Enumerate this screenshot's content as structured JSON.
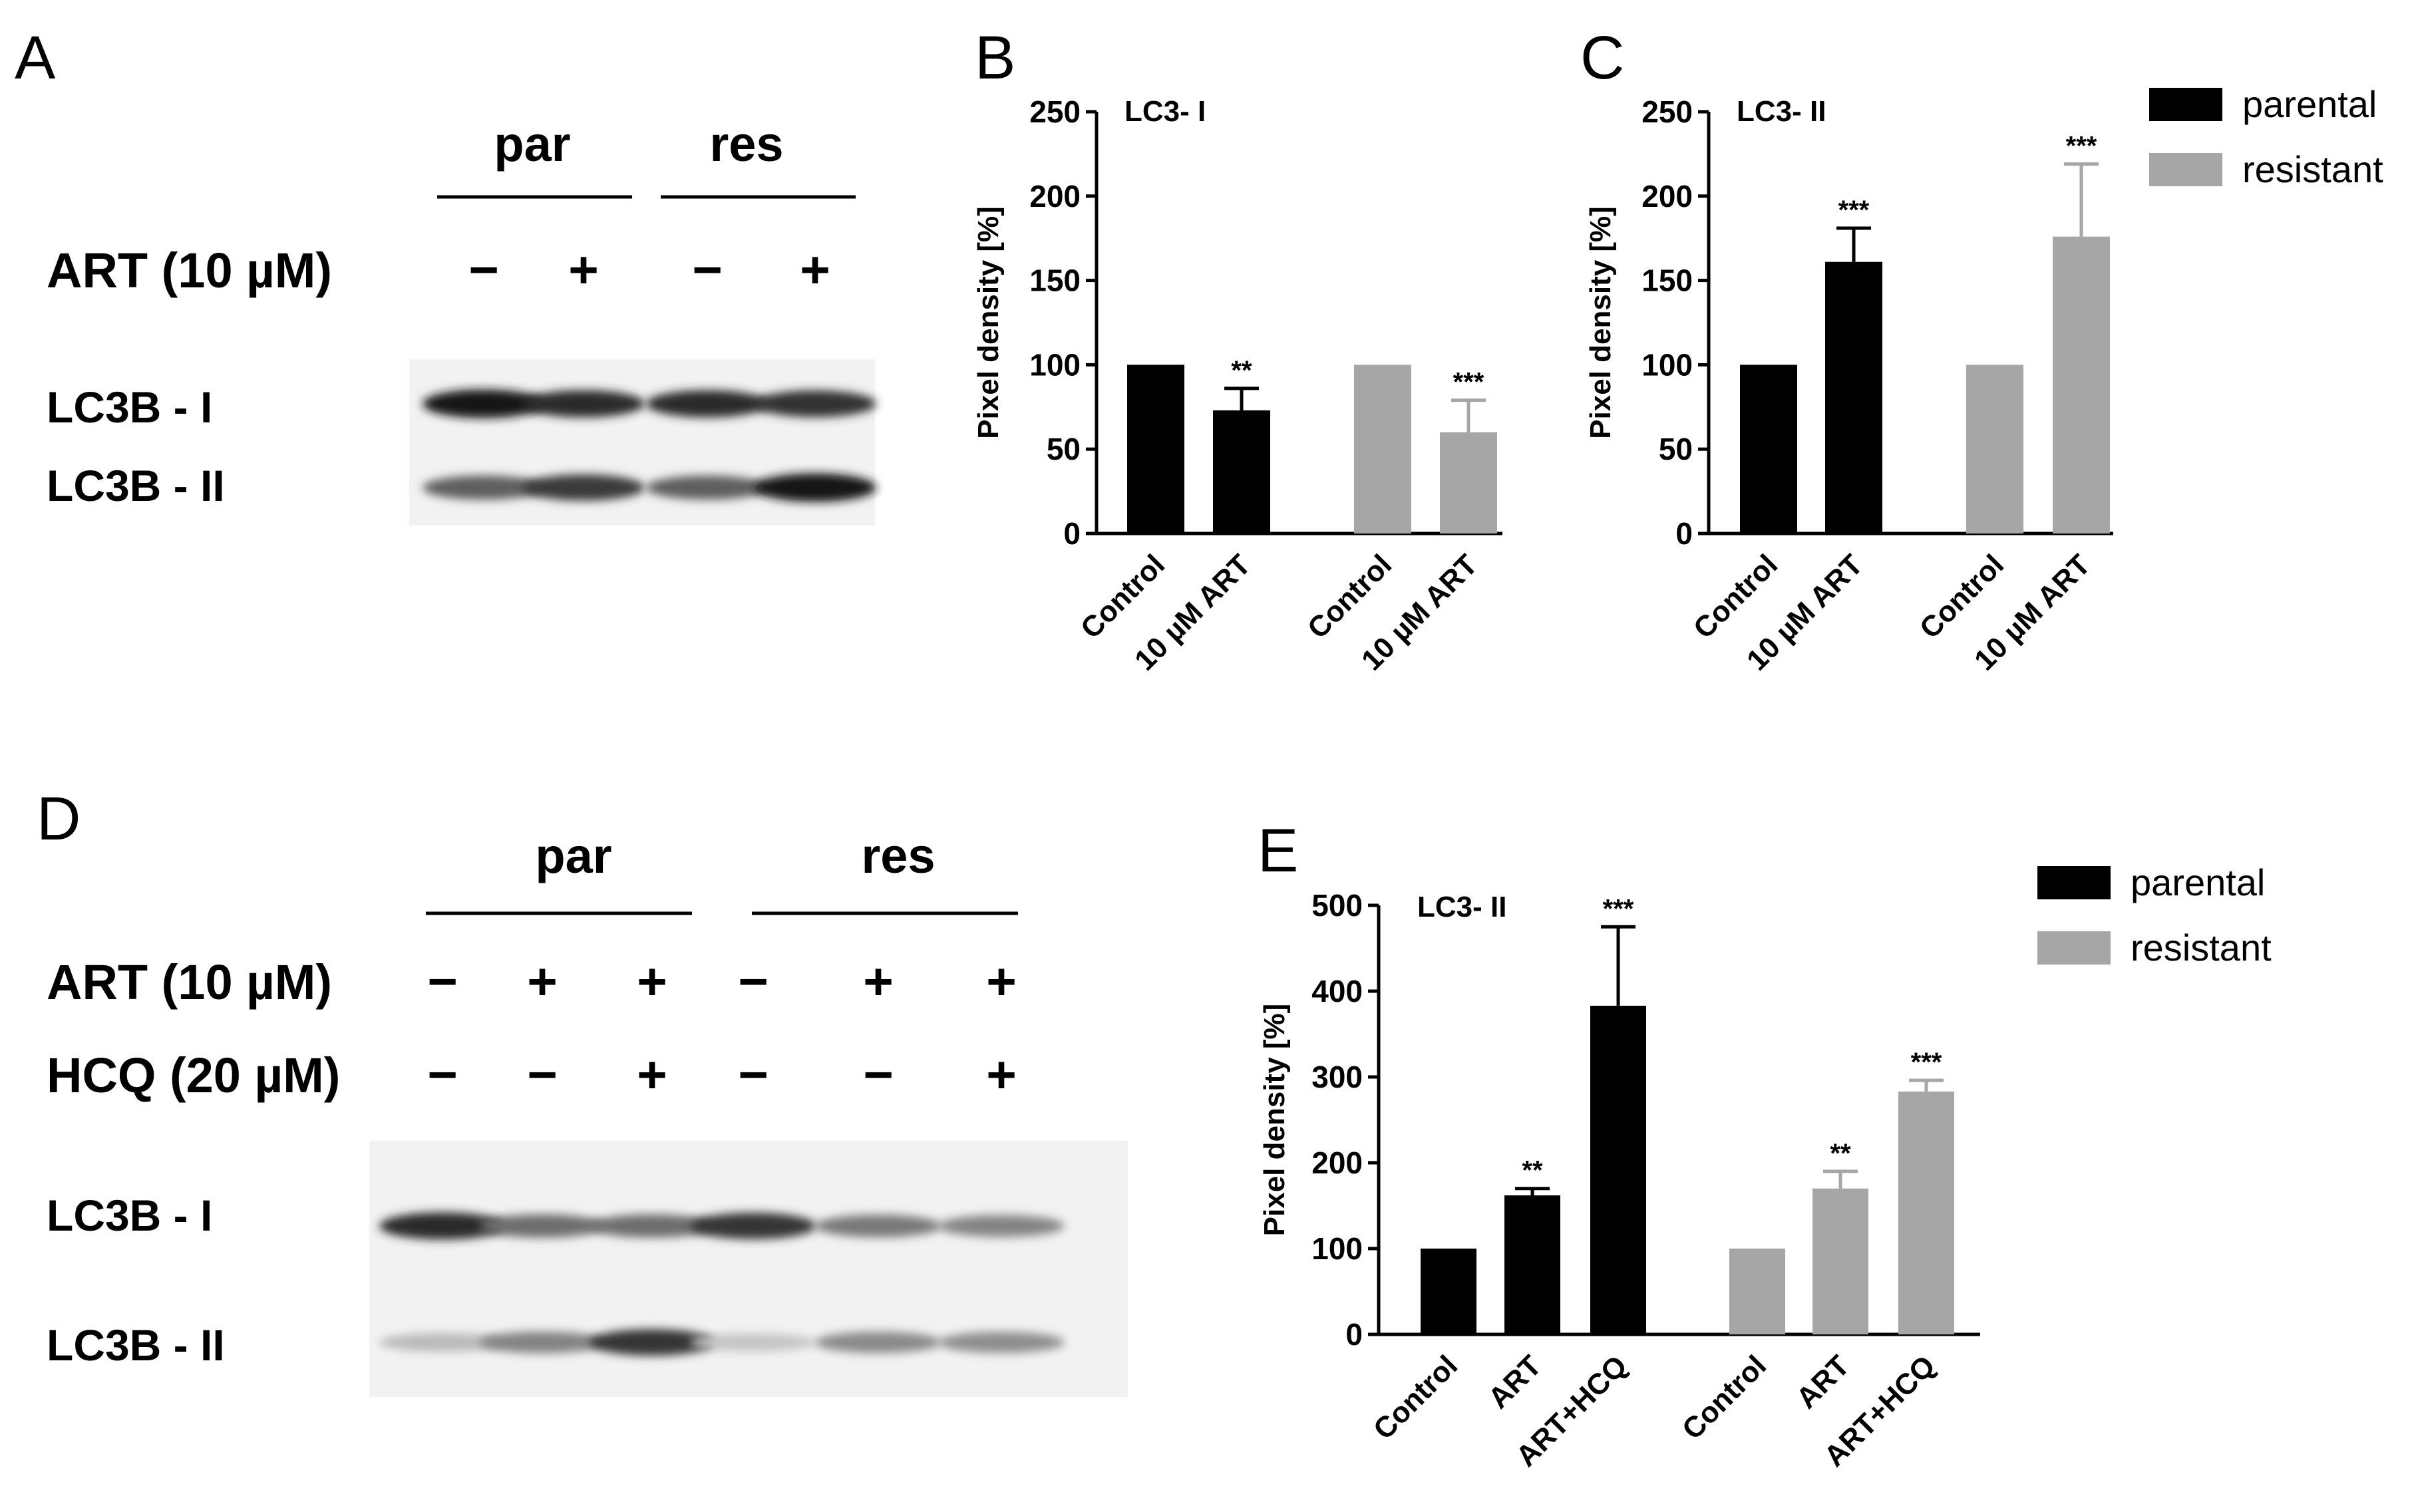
{
  "panels": {
    "A": "A",
    "B": "B",
    "C": "C",
    "D": "D",
    "E": "E"
  },
  "blot_a": {
    "groups": [
      "par",
      "res"
    ],
    "rows": [
      {
        "label": "ART (10 µM)",
        "signs": [
          "−",
          "+",
          "−",
          "+"
        ]
      }
    ],
    "bands": [
      "LC3B - I",
      "LC3B - II"
    ],
    "band_intensity": {
      "LC3B - I": [
        0.95,
        0.85,
        0.85,
        0.82
      ],
      "LC3B - II": [
        0.62,
        0.78,
        0.62,
        0.95
      ]
    }
  },
  "blot_d": {
    "groups": [
      "par",
      "res"
    ],
    "rows": [
      {
        "label": "ART (10 µM)",
        "signs": [
          "−",
          "+",
          "+",
          "−",
          "+",
          "+"
        ]
      },
      {
        "label": "HCQ (20 µM)",
        "signs": [
          "−",
          "−",
          "+",
          "−",
          "−",
          "+"
        ]
      }
    ],
    "bands": [
      "LC3B - I",
      "LC3B - II"
    ],
    "band_intensity": {
      "LC3B - I": [
        0.85,
        0.55,
        0.55,
        0.8,
        0.5,
        0.45
      ],
      "LC3B - II": [
        0.2,
        0.45,
        0.8,
        0.15,
        0.42,
        0.4
      ]
    }
  },
  "legend_top": {
    "items": [
      {
        "name": "parental",
        "color": "#000000"
      },
      {
        "name": "resistant",
        "color": "#a6a6a6"
      }
    ]
  },
  "legend_bottom": {
    "items": [
      {
        "name": "parental",
        "color": "#000000"
      },
      {
        "name": "resistant",
        "color": "#a6a6a6"
      }
    ]
  },
  "chart_data": [
    {
      "panel": "B",
      "type": "bar",
      "title": "LC3- I",
      "ylabel": "Pixel density [%]",
      "ylim": [
        0,
        250
      ],
      "yticks": [
        0,
        50,
        100,
        150,
        200,
        250
      ],
      "categories": [
        "Control",
        "10 µM ART",
        "Control",
        "10 µM ART"
      ],
      "values": [
        100,
        73,
        100,
        60
      ],
      "errors": [
        0,
        13,
        0,
        19
      ],
      "colors": [
        "#000000",
        "#000000",
        "#a6a6a6",
        "#a6a6a6"
      ],
      "significance": [
        "",
        "**",
        "",
        "***"
      ],
      "grid": false
    },
    {
      "panel": "C",
      "type": "bar",
      "title": "LC3- II",
      "ylabel": "Pixel density [%]",
      "ylim": [
        0,
        250
      ],
      "yticks": [
        0,
        50,
        100,
        150,
        200,
        250
      ],
      "categories": [
        "Control",
        "10 µM ART",
        "Control",
        "10 µM ART"
      ],
      "values": [
        100,
        161,
        100,
        176
      ],
      "errors": [
        0,
        20,
        0,
        43
      ],
      "colors": [
        "#000000",
        "#000000",
        "#a6a6a6",
        "#a6a6a6"
      ],
      "significance": [
        "",
        "***",
        "",
        "***"
      ],
      "grid": false
    },
    {
      "panel": "E",
      "type": "bar",
      "title": "LC3- II",
      "ylabel": "Pixel density [%]",
      "ylim": [
        0,
        500
      ],
      "yticks": [
        0,
        100,
        200,
        300,
        400,
        500
      ],
      "categories": [
        "Control",
        "ART",
        "ART+HCQ",
        "Control",
        "ART",
        "ART+HCQ"
      ],
      "values": [
        100,
        162,
        383,
        100,
        170,
        283
      ],
      "errors": [
        0,
        8,
        92,
        0,
        20,
        13
      ],
      "colors": [
        "#000000",
        "#000000",
        "#000000",
        "#a6a6a6",
        "#a6a6a6",
        "#a6a6a6"
      ],
      "significance": [
        "",
        "**",
        "***",
        "",
        "**",
        "***"
      ],
      "grid": false
    }
  ]
}
